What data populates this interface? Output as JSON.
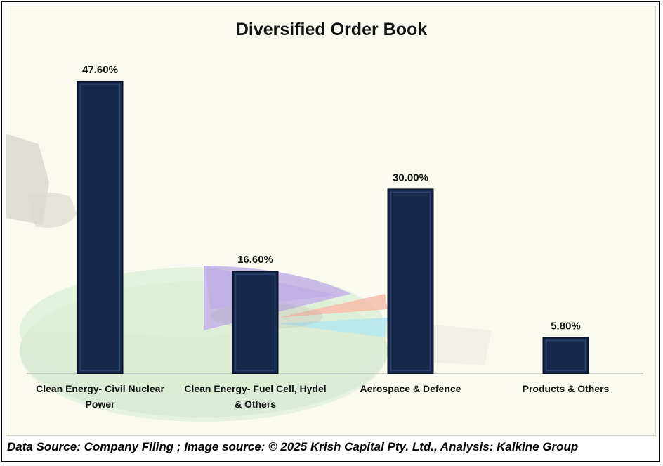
{
  "chart_data": {
    "type": "bar",
    "title": "Diversified Order Book",
    "categories": [
      [
        "Clean Energy- Civil Nuclear",
        "Power"
      ],
      [
        "Clean Energy- Fuel Cell, Hydel",
        "& Others"
      ],
      [
        "Aerospace & Defence"
      ],
      [
        "Products & Others"
      ]
    ],
    "values": [
      47.6,
      16.6,
      30.0,
      5.8
    ],
    "data_labels": [
      "47.60%",
      "16.60%",
      "30.00%",
      "5.80%"
    ],
    "xlabel": "",
    "ylabel": "",
    "ylim": [
      0,
      50
    ],
    "grid": false,
    "legend": "none",
    "bar_color": "#16294a",
    "bar_edge_color": "#0a1428"
  },
  "footer": {
    "source_text": "Data Source: Company Filing ; Image source: © 2025 Krish Capital Pty. Ltd., Analysis: Kalkine Group"
  },
  "background_image": {
    "description_icon": "hand-pie-chart-watermark"
  }
}
